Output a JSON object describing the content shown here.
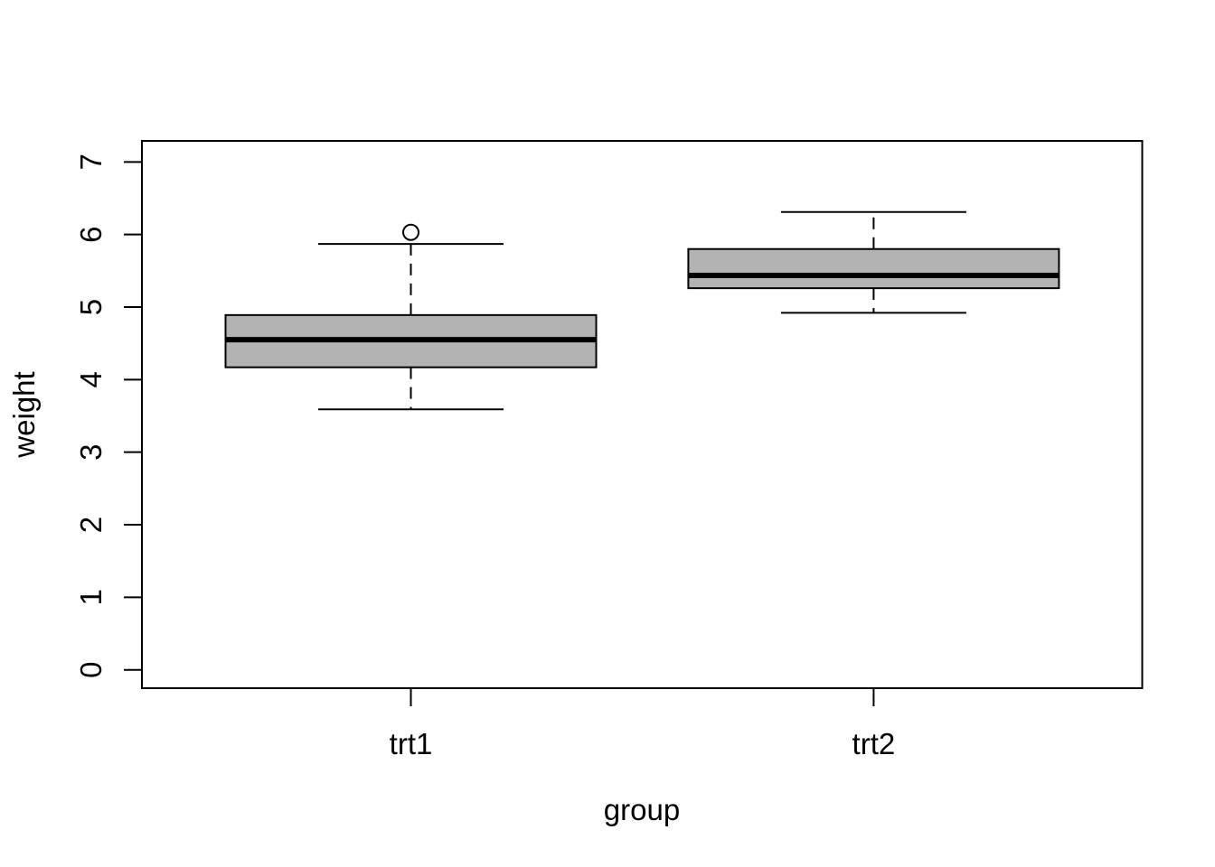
{
  "figure": {
    "background": "#ffffff"
  },
  "chart_data": {
    "type": "boxplot",
    "title": "",
    "xlabel": "group",
    "ylabel": "weight",
    "categories": [
      "trt1",
      "trt2"
    ],
    "series": [
      {
        "name": "trt1",
        "whisker_low": 3.59,
        "q1": 4.17,
        "median": 4.55,
        "q3": 4.89,
        "whisker_high": 5.87,
        "outliers": [
          6.03
        ]
      },
      {
        "name": "trt2",
        "whisker_low": 4.92,
        "q1": 5.26,
        "median": 5.435,
        "q3": 5.8,
        "whisker_high": 6.31,
        "outliers": []
      }
    ],
    "ylim": [
      0,
      7
    ],
    "y_ticks": [
      0,
      1,
      2,
      3,
      4,
      5,
      6,
      7
    ],
    "grid": false,
    "legend": "none",
    "box_fill": "#b3b3b3",
    "line_color": "#000000",
    "median_color": "#000000",
    "outlier_style": "open-circle"
  }
}
